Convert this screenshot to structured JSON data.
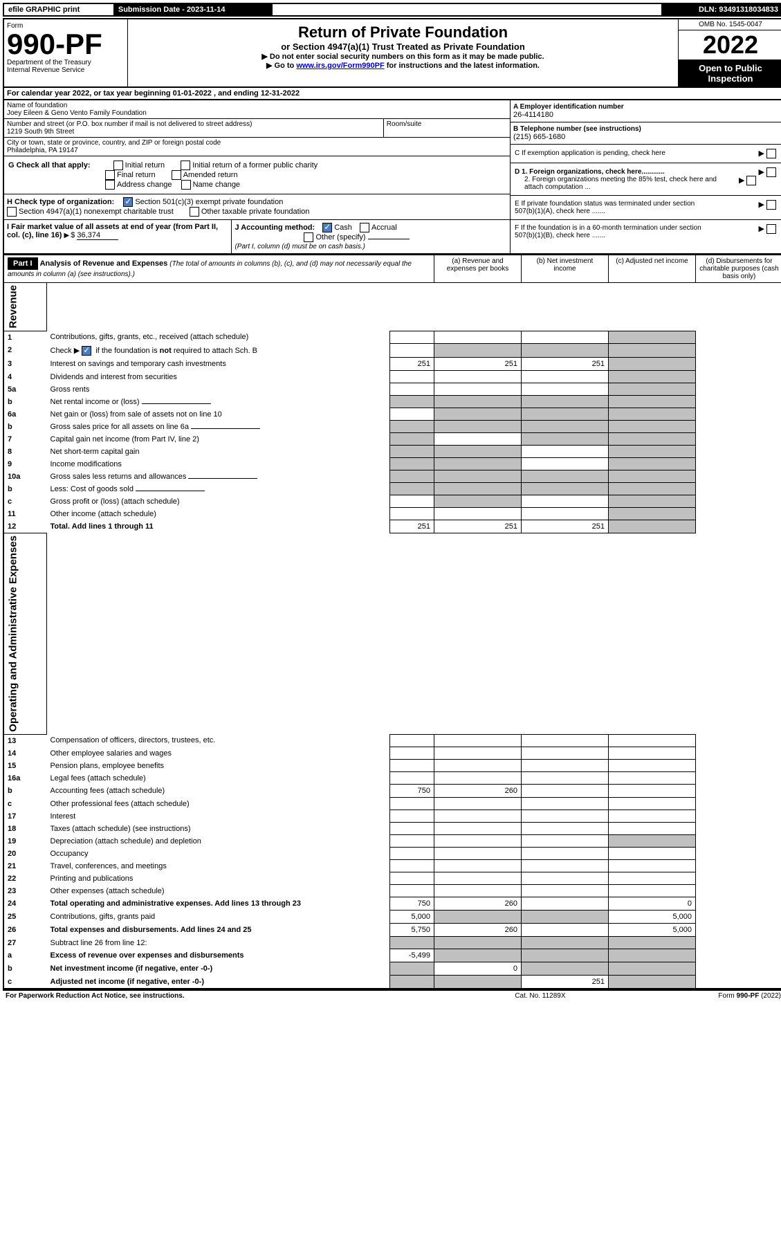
{
  "topbar": {
    "efile": "efile GRAPHIC print",
    "sub_label": "Submission Date - 2023-11-14",
    "dln": "DLN: 93491318034833"
  },
  "header": {
    "form_label": "Form",
    "form_no": "990-PF",
    "dept": "Department of the Treasury",
    "irs": "Internal Revenue Service",
    "title": "Return of Private Foundation",
    "subtitle": "or Section 4947(a)(1) Trust Treated as Private Foundation",
    "instr1": "▶ Do not enter social security numbers on this form as it may be made public.",
    "instr2_pre": "▶ Go to ",
    "instr2_link": "www.irs.gov/Form990PF",
    "instr2_post": " for instructions and the latest information.",
    "omb": "OMB No. 1545-0047",
    "year": "2022",
    "open": "Open to Public Inspection"
  },
  "cal": {
    "text_pre": "For calendar year 2022, or tax year beginning ",
    "begin": "01-01-2022",
    "mid": " , and ending ",
    "end": "12-31-2022"
  },
  "id": {
    "name_label": "Name of foundation",
    "name": "Joey Eileen & Geno Vento Family Foundation",
    "addr_label": "Number and street (or P.O. box number if mail is not delivered to street address)",
    "addr": "1219 South 9th Street",
    "room_label": "Room/suite",
    "city_label": "City or town, state or province, country, and ZIP or foreign postal code",
    "city": "Philadelphia, PA  19147",
    "ein_label": "A Employer identification number",
    "ein": "26-4114180",
    "tel_label": "B Telephone number (see instructions)",
    "tel": "(215) 665-1680",
    "c_label": "C If exemption application is pending, check here",
    "d1": "D 1. Foreign organizations, check here............",
    "d2": "2. Foreign organizations meeting the 85% test, check here and attach computation ...",
    "e": "E  If private foundation status was terminated under section 507(b)(1)(A), check here .......",
    "f": "F  If the foundation is in a 60-month termination under section 507(b)(1)(B), check here .......",
    "g_label": "G Check all that apply:",
    "g_opts": [
      "Initial return",
      "Initial return of a former public charity",
      "Final return",
      "Amended return",
      "Address change",
      "Name change"
    ],
    "h_label": "H Check type of organization:",
    "h1": "Section 501(c)(3) exempt private foundation",
    "h2": "Section 4947(a)(1) nonexempt charitable trust",
    "h3": "Other taxable private foundation",
    "i_label": "I Fair market value of all assets at end of year (from Part II, col. (c), line 16)",
    "i_val": "36,374",
    "j_label": "J Accounting method:",
    "j_cash": "Cash",
    "j_accrual": "Accrual",
    "j_other": "Other (specify)",
    "j_note": "(Part I, column (d) must be on cash basis.)"
  },
  "part1": {
    "label": "Part I",
    "title": "Analysis of Revenue and Expenses",
    "title_note": " (The total of amounts in columns (b), (c), and (d) may not necessarily equal the amounts in column (a) (see instructions).)",
    "col_a": "(a)  Revenue and expenses per books",
    "col_b": "(b)  Net investment income",
    "col_c": "(c)  Adjusted net income",
    "col_d": "(d)  Disbursements for charitable purposes (cash basis only)",
    "revenue_label": "Revenue",
    "expenses_label": "Operating and Administrative Expenses"
  },
  "rows": [
    {
      "n": "1",
      "desc": "Contributions, gifts, grants, etc., received (attach schedule)",
      "a": "",
      "b": "",
      "c": "",
      "d": "",
      "grey_d": true
    },
    {
      "n": "2",
      "desc": "Check ▶ ☑ if the foundation is not required to attach Sch. B",
      "a": "",
      "b": "",
      "c": "",
      "d": "",
      "grey_bcd": true,
      "has_check": true
    },
    {
      "n": "3",
      "desc": "Interest on savings and temporary cash investments",
      "a": "251",
      "b": "251",
      "c": "251",
      "d": "",
      "grey_d": true
    },
    {
      "n": "4",
      "desc": "Dividends and interest from securities",
      "a": "",
      "b": "",
      "c": "",
      "d": "",
      "grey_d": true
    },
    {
      "n": "5a",
      "desc": "Gross rents",
      "a": "",
      "b": "",
      "c": "",
      "d": "",
      "grey_d": true
    },
    {
      "n": "b",
      "desc": "Net rental income or (loss)",
      "a": "",
      "b": "",
      "c": "",
      "d": "",
      "grey_all": true,
      "inline_box": true
    },
    {
      "n": "6a",
      "desc": "Net gain or (loss) from sale of assets not on line 10",
      "a": "",
      "b": "",
      "c": "",
      "d": "",
      "grey_bcd": true
    },
    {
      "n": "b",
      "desc": "Gross sales price for all assets on line 6a",
      "a": "",
      "b": "",
      "c": "",
      "d": "",
      "grey_all": true,
      "inline_box": true
    },
    {
      "n": "7",
      "desc": "Capital gain net income (from Part IV, line 2)",
      "a": "",
      "b": "",
      "c": "",
      "d": "",
      "grey_acd": true
    },
    {
      "n": "8",
      "desc": "Net short-term capital gain",
      "a": "",
      "b": "",
      "c": "",
      "d": "",
      "grey_abd": true
    },
    {
      "n": "9",
      "desc": "Income modifications",
      "a": "",
      "b": "",
      "c": "",
      "d": "",
      "grey_abd": true
    },
    {
      "n": "10a",
      "desc": "Gross sales less returns and allowances",
      "a": "",
      "b": "",
      "c": "",
      "d": "",
      "grey_all": true,
      "inline_box": true
    },
    {
      "n": "b",
      "desc": "Less: Cost of goods sold",
      "a": "",
      "b": "",
      "c": "",
      "d": "",
      "grey_all": true,
      "inline_box": true
    },
    {
      "n": "c",
      "desc": "Gross profit or (loss) (attach schedule)",
      "a": "",
      "b": "",
      "c": "",
      "d": "",
      "grey_bd": true
    },
    {
      "n": "11",
      "desc": "Other income (attach schedule)",
      "a": "",
      "b": "",
      "c": "",
      "d": "",
      "grey_d": true
    },
    {
      "n": "12",
      "desc": "Total. Add lines 1 through 11",
      "a": "251",
      "b": "251",
      "c": "251",
      "d": "",
      "grey_d": true,
      "bold": true
    }
  ],
  "exp_rows": [
    {
      "n": "13",
      "desc": "Compensation of officers, directors, trustees, etc.",
      "a": "",
      "b": "",
      "c": "",
      "d": ""
    },
    {
      "n": "14",
      "desc": "Other employee salaries and wages",
      "a": "",
      "b": "",
      "c": "",
      "d": ""
    },
    {
      "n": "15",
      "desc": "Pension plans, employee benefits",
      "a": "",
      "b": "",
      "c": "",
      "d": ""
    },
    {
      "n": "16a",
      "desc": "Legal fees (attach schedule)",
      "a": "",
      "b": "",
      "c": "",
      "d": ""
    },
    {
      "n": "b",
      "desc": "Accounting fees (attach schedule)",
      "a": "750",
      "b": "260",
      "c": "",
      "d": ""
    },
    {
      "n": "c",
      "desc": "Other professional fees (attach schedule)",
      "a": "",
      "b": "",
      "c": "",
      "d": ""
    },
    {
      "n": "17",
      "desc": "Interest",
      "a": "",
      "b": "",
      "c": "",
      "d": ""
    },
    {
      "n": "18",
      "desc": "Taxes (attach schedule) (see instructions)",
      "a": "",
      "b": "",
      "c": "",
      "d": ""
    },
    {
      "n": "19",
      "desc": "Depreciation (attach schedule) and depletion",
      "a": "",
      "b": "",
      "c": "",
      "d": "",
      "grey_d": true
    },
    {
      "n": "20",
      "desc": "Occupancy",
      "a": "",
      "b": "",
      "c": "",
      "d": ""
    },
    {
      "n": "21",
      "desc": "Travel, conferences, and meetings",
      "a": "",
      "b": "",
      "c": "",
      "d": ""
    },
    {
      "n": "22",
      "desc": "Printing and publications",
      "a": "",
      "b": "",
      "c": "",
      "d": ""
    },
    {
      "n": "23",
      "desc": "Other expenses (attach schedule)",
      "a": "",
      "b": "",
      "c": "",
      "d": ""
    },
    {
      "n": "24",
      "desc": "Total operating and administrative expenses. Add lines 13 through 23",
      "a": "750",
      "b": "260",
      "c": "",
      "d": "0",
      "bold": true
    },
    {
      "n": "25",
      "desc": "Contributions, gifts, grants paid",
      "a": "5,000",
      "b": "",
      "c": "",
      "d": "5,000",
      "grey_bc": true
    },
    {
      "n": "26",
      "desc": "Total expenses and disbursements. Add lines 24 and 25",
      "a": "5,750",
      "b": "260",
      "c": "",
      "d": "5,000",
      "bold": true
    },
    {
      "n": "27",
      "desc": "Subtract line 26 from line 12:",
      "a": "",
      "b": "",
      "c": "",
      "d": "",
      "grey_all": true
    },
    {
      "n": "a",
      "desc": "Excess of revenue over expenses and disbursements",
      "a": "-5,499",
      "b": "",
      "c": "",
      "d": "",
      "grey_bcd": true,
      "bold": true
    },
    {
      "n": "b",
      "desc": "Net investment income (if negative, enter -0-)",
      "a": "",
      "b": "0",
      "c": "",
      "d": "",
      "grey_acd": true,
      "bold": true
    },
    {
      "n": "c",
      "desc": "Adjusted net income (if negative, enter -0-)",
      "a": "",
      "b": "",
      "c": "251",
      "d": "",
      "grey_abd": true,
      "bold": true
    }
  ],
  "footer": {
    "left": "For Paperwork Reduction Act Notice, see instructions.",
    "mid": "Cat. No. 11289X",
    "right": "Form 990-PF (2022)"
  }
}
